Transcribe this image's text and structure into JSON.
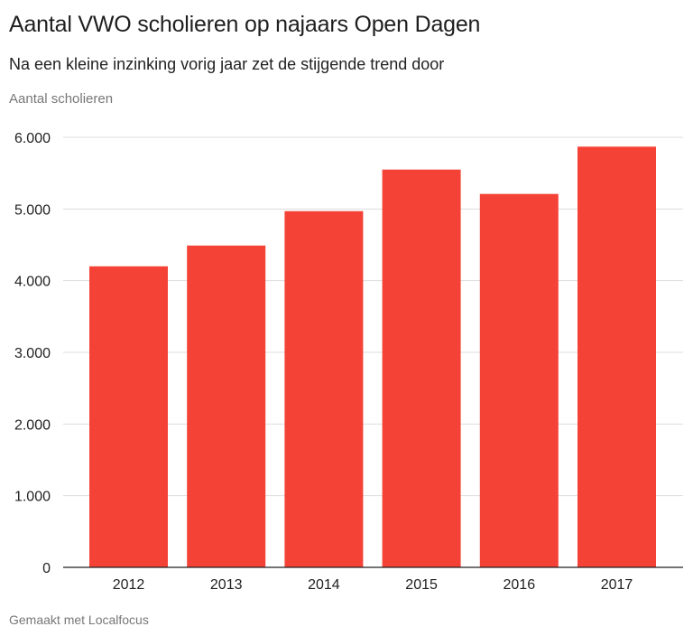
{
  "header": {
    "title": "Aantal VWO scholieren op najaars Open Dagen",
    "subtitle": "Na een kleine inzinking vorig jaar zet de stijgende trend door"
  },
  "footer": {
    "credit": "Gemaakt met Localfocus"
  },
  "chart_data": {
    "type": "bar",
    "title": "Aantal VWO scholieren op najaars Open Dagen",
    "subtitle": "Na een kleine inzinking vorig jaar zet de stijgende trend door",
    "xlabel": "",
    "ylabel": "Aantal scholieren",
    "categories": [
      "2012",
      "2013",
      "2014",
      "2015",
      "2016",
      "2017"
    ],
    "values": [
      4200,
      4490,
      4970,
      5550,
      5210,
      5870
    ],
    "ylim": [
      0,
      6000
    ],
    "yticks": [
      0,
      1000,
      2000,
      3000,
      4000,
      5000,
      6000
    ],
    "ytick_labels": [
      "0",
      "1.000",
      "2.000",
      "3.000",
      "4.000",
      "5.000",
      "6.000"
    ],
    "grid": true,
    "bar_color": "#f44336",
    "legend": "none"
  }
}
